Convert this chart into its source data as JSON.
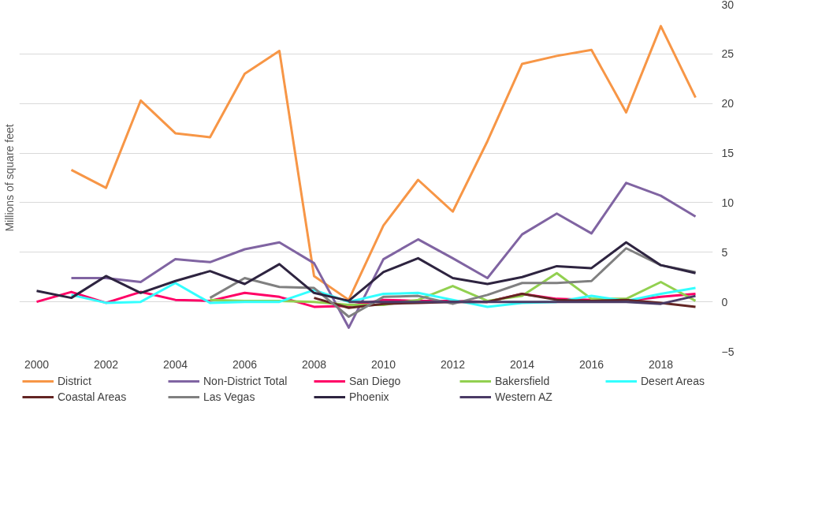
{
  "chart_data": {
    "type": "line",
    "ylabel": "Millions of square feet",
    "x": [
      2000,
      2001,
      2002,
      2003,
      2004,
      2005,
      2006,
      2007,
      2008,
      2009,
      2010,
      2011,
      2012,
      2013,
      2014,
      2015,
      2016,
      2017,
      2018,
      2019
    ],
    "xlim": [
      1999.5,
      2019.5
    ],
    "xticks": [
      2000,
      2002,
      2004,
      2006,
      2008,
      2010,
      2012,
      2014,
      2016,
      2018
    ],
    "ylim": [
      -5,
      30
    ],
    "yticks": [
      -5,
      0,
      5,
      10,
      15,
      20,
      25,
      30
    ],
    "grid": "y",
    "legend": "bottom",
    "line_style": "solid",
    "series": [
      {
        "name": "District",
        "color": "#f79646",
        "values": [
          null,
          13.3,
          11.5,
          20.3,
          17.0,
          16.6,
          23.0,
          25.3,
          2.6,
          0.2,
          7.7,
          12.3,
          9.1,
          16.2,
          24.0,
          24.8,
          25.4,
          19.1,
          27.8,
          20.6
        ]
      },
      {
        "name": "Non-District Total",
        "color": "#8064a2",
        "values": [
          null,
          2.4,
          2.4,
          2.0,
          4.3,
          4.0,
          5.3,
          6.0,
          3.9,
          -2.6,
          4.3,
          6.3,
          4.4,
          2.4,
          6.8,
          8.9,
          6.9,
          12.0,
          10.7,
          8.6
        ]
      },
      {
        "name": "San Diego",
        "color": "#ff0066",
        "values": [
          0.0,
          1.0,
          -0.1,
          1.0,
          0.2,
          0.1,
          0.9,
          0.5,
          -0.5,
          -0.4,
          0.2,
          0.1,
          0.1,
          0.0,
          0.8,
          0.3,
          0.2,
          0.1,
          0.5,
          0.8
        ]
      },
      {
        "name": "Bakersfield",
        "color": "#92d050",
        "values": [
          null,
          null,
          null,
          null,
          null,
          0.2,
          0.1,
          0.1,
          0.0,
          -0.3,
          -0.3,
          0.2,
          1.6,
          0.1,
          0.6,
          2.9,
          0.3,
          0.3,
          2.0,
          0.1
        ]
      },
      {
        "name": "Desert Areas",
        "color": "#33ffff",
        "values": [
          null,
          0.7,
          -0.1,
          0.0,
          1.9,
          -0.1,
          0.0,
          0.0,
          1.2,
          0.0,
          0.8,
          0.9,
          0.2,
          -0.5,
          -0.1,
          0.0,
          0.6,
          0.1,
          0.8,
          1.4
        ]
      },
      {
        "name": "Coastal Areas",
        "color": "#632523",
        "values": [
          null,
          null,
          null,
          null,
          null,
          null,
          null,
          null,
          0.4,
          -0.6,
          -0.2,
          -0.1,
          0.0,
          0.0,
          0.8,
          0.2,
          0.1,
          0.2,
          -0.1,
          -0.5
        ]
      },
      {
        "name": "Las Vegas",
        "color": "#808080",
        "values": [
          null,
          null,
          null,
          null,
          null,
          0.4,
          2.4,
          1.5,
          1.4,
          -1.5,
          0.5,
          0.6,
          -0.2,
          0.7,
          1.9,
          1.9,
          2.1,
          5.4,
          3.7,
          3.0
        ]
      },
      {
        "name": "Phoenix",
        "color": "#2e2440",
        "values": [
          1.1,
          0.4,
          2.6,
          0.9,
          2.1,
          3.1,
          1.8,
          3.8,
          0.9,
          0.1,
          3.0,
          4.4,
          2.4,
          1.8,
          2.5,
          3.6,
          3.4,
          6.0,
          3.7,
          2.9
        ]
      },
      {
        "name": "Western AZ",
        "color": "#4b3b66",
        "values": [
          null,
          null,
          null,
          null,
          null,
          null,
          null,
          null,
          null,
          0.0,
          0.0,
          0.0,
          0.0,
          0.0,
          0.0,
          0.0,
          0.0,
          0.0,
          -0.2,
          0.6
        ]
      }
    ]
  }
}
